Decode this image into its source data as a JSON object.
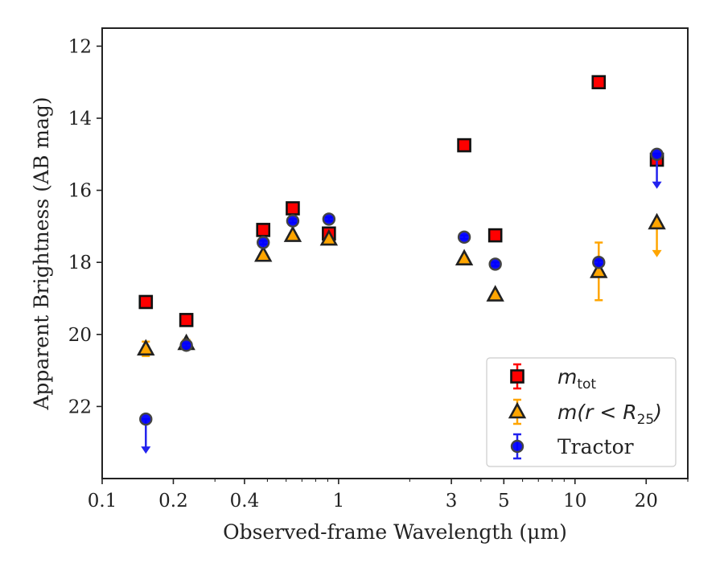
{
  "chart_data": {
    "type": "scatter",
    "xlabel": "Observed-frame Wavelength (μm)",
    "ylabel": "Apparent Brightness (AB mag)",
    "xscale": "log",
    "xlim": [
      0.1,
      30
    ],
    "ylim": [
      24,
      11.5
    ],
    "y_inverted": true,
    "x_ticks": [
      0.1,
      0.2,
      0.4,
      1,
      3,
      5,
      10,
      20
    ],
    "x_tick_labels": [
      "0.1",
      "0.2",
      "0.4",
      "1",
      "3",
      "5",
      "10",
      "20"
    ],
    "y_ticks": [
      12,
      14,
      16,
      18,
      20,
      22
    ],
    "y_tick_labels": [
      "12",
      "14",
      "16",
      "18",
      "20",
      "22"
    ],
    "legend_position": "lower-right",
    "series": [
      {
        "name": "m_tot",
        "legend_main": "m",
        "legend_sub": "tot",
        "marker": "square",
        "color": "#ff0000",
        "edge_color": "#111111",
        "err_color": "#ff0000",
        "points": [
          {
            "x": 0.153,
            "y": 19.1,
            "err": 0.1
          },
          {
            "x": 0.227,
            "y": 19.6,
            "err": 0.08
          },
          {
            "x": 0.48,
            "y": 17.1,
            "err": 0.05
          },
          {
            "x": 0.64,
            "y": 16.5,
            "err": 0.05
          },
          {
            "x": 0.91,
            "y": 17.2,
            "err": 0.05
          },
          {
            "x": 3.4,
            "y": 14.75,
            "err": 0.05
          },
          {
            "x": 4.6,
            "y": 17.25,
            "err": 0.05
          },
          {
            "x": 12.6,
            "y": 13.0,
            "err": 0.05
          },
          {
            "x": 22.2,
            "y": 15.15,
            "err": 0.08
          }
        ]
      },
      {
        "name": "m(r<R25)",
        "legend_main": "m(r < R",
        "legend_sub": "25",
        "legend_end": ")",
        "marker": "triangle",
        "color": "#ffa500",
        "edge_color": "#222222",
        "err_color": "#ffa500",
        "points": [
          {
            "x": 0.153,
            "y": 20.4,
            "err": 0.2
          },
          {
            "x": 0.227,
            "y": 20.25,
            "err": 0.1
          },
          {
            "x": 0.48,
            "y": 17.8,
            "err": 0.05
          },
          {
            "x": 0.64,
            "y": 17.25,
            "err": 0.05
          },
          {
            "x": 0.91,
            "y": 17.35,
            "err": 0.05
          },
          {
            "x": 3.4,
            "y": 17.9,
            "err": 0.05
          },
          {
            "x": 4.6,
            "y": 18.9,
            "err": 0.05
          },
          {
            "x": 12.6,
            "y": 18.25,
            "err": 0.8
          },
          {
            "x": 22.2,
            "y": 16.9,
            "upper_limit": true
          }
        ]
      },
      {
        "name": "Tractor",
        "legend_main": "Tractor",
        "marker": "circle",
        "color": "#0000ff",
        "edge_color": "#444444",
        "err_color": "#2222ee",
        "points": [
          {
            "x": 0.153,
            "y": 22.35,
            "upper_limit": true
          },
          {
            "x": 0.227,
            "y": 20.3,
            "err": 0.05
          },
          {
            "x": 0.48,
            "y": 17.45,
            "err": 0.05
          },
          {
            "x": 0.64,
            "y": 16.85,
            "err": 0.05
          },
          {
            "x": 0.91,
            "y": 16.8,
            "err": 0.05
          },
          {
            "x": 3.4,
            "y": 17.3,
            "err": 0.05
          },
          {
            "x": 4.6,
            "y": 18.05,
            "err": 0.05
          },
          {
            "x": 12.6,
            "y": 18.0,
            "err": 0.05
          },
          {
            "x": 22.2,
            "y": 15.0,
            "upper_limit": true
          }
        ]
      }
    ]
  }
}
